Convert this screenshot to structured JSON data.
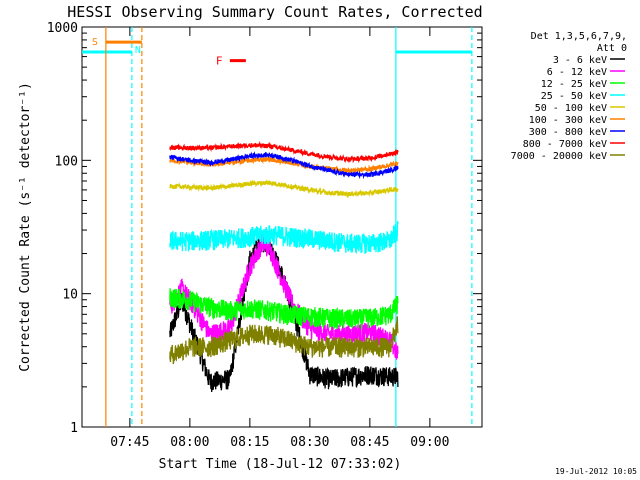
{
  "chart_data": {
    "type": "line",
    "title": "HESSI Observing Summary Count Rates, Corrected",
    "xlabel": "Start Time (18-Jul-12 07:33:02)",
    "ylabel": "Corrected Count Rate (s⁻¹ detector⁻¹)",
    "y_scale": "log",
    "ylim": [
      1,
      1000
    ],
    "xlim": [
      "07:33:02",
      "09:13:02"
    ],
    "x_ticks": [
      "07:45",
      "08:00",
      "08:15",
      "08:30",
      "08:45",
      "09:00"
    ],
    "y_ticks": [
      "1",
      "10",
      "100",
      "1000"
    ],
    "timestamp": "19-Jul-2012 10:05",
    "legend": {
      "header": [
        "Det 1,3,5,6,7,9,",
        "Att 0"
      ],
      "placement": "right"
    },
    "series": [
      {
        "name": "3 - 6 keV",
        "color": "#000000",
        "x": [
          "07:55",
          "07:58",
          "08:00",
          "08:05",
          "08:10",
          "08:15",
          "08:18",
          "08:20",
          "08:23",
          "08:26",
          "08:30",
          "08:35",
          "08:40",
          "08:45",
          "08:50",
          "08:52"
        ],
        "y": [
          5,
          9,
          6,
          2.2,
          2.3,
          18,
          25,
          23,
          14,
          7,
          2.5,
          2.3,
          2.4,
          2.5,
          2.4,
          2.4
        ]
      },
      {
        "name": "6 - 12 keV",
        "color": "#ff00ff",
        "x": [
          "07:55",
          "07:58",
          "08:00",
          "08:05",
          "08:10",
          "08:15",
          "08:18",
          "08:20",
          "08:23",
          "08:26",
          "08:30",
          "08:35",
          "08:40",
          "08:45",
          "08:50",
          "08:52"
        ],
        "y": [
          8,
          11,
          9,
          5,
          5.5,
          16,
          24,
          22,
          13,
          8,
          5.5,
          5,
          5,
          5.2,
          4.5,
          3.5
        ]
      },
      {
        "name": "12 - 25 keV",
        "color": "#00ff00",
        "x": [
          "07:55",
          "08:00",
          "08:05",
          "08:10",
          "08:15",
          "08:20",
          "08:25",
          "08:30",
          "08:35",
          "08:40",
          "08:45",
          "08:50",
          "08:52"
        ],
        "y": [
          9.5,
          9,
          8,
          7.5,
          7.8,
          7.5,
          7,
          6.8,
          6.6,
          6.5,
          6.6,
          7,
          8.5
        ]
      },
      {
        "name": "25 - 50 keV",
        "color": "#00ffff",
        "x": [
          "07:55",
          "08:00",
          "08:05",
          "08:10",
          "08:15",
          "08:20",
          "08:25",
          "08:30",
          "08:35",
          "08:40",
          "08:45",
          "08:50",
          "08:52"
        ],
        "y": [
          25,
          25,
          25.5,
          26,
          27,
          28,
          27,
          26,
          25,
          24,
          24,
          25,
          30
        ]
      },
      {
        "name": "50 - 100 keV",
        "color": "#d8c800",
        "x": [
          "07:55",
          "08:00",
          "08:05",
          "08:10",
          "08:15",
          "08:20",
          "08:25",
          "08:30",
          "08:35",
          "08:40",
          "08:45",
          "08:50",
          "08:52"
        ],
        "y": [
          64,
          63,
          62,
          64,
          67,
          68,
          64,
          60,
          57,
          56,
          57,
          60,
          61
        ]
      },
      {
        "name": "100 - 300 keV",
        "color": "#ff8000",
        "x": [
          "07:55",
          "08:00",
          "08:05",
          "08:10",
          "08:15",
          "08:20",
          "08:25",
          "08:30",
          "08:35",
          "08:40",
          "08:45",
          "08:50",
          "08:52"
        ],
        "y": [
          100,
          97,
          93,
          96,
          100,
          102,
          96,
          90,
          86,
          84,
          86,
          92,
          95
        ]
      },
      {
        "name": "300 - 800 keV",
        "color": "#0000ff",
        "x": [
          "07:55",
          "08:00",
          "08:05",
          "08:10",
          "08:15",
          "08:20",
          "08:25",
          "08:30",
          "08:35",
          "08:40",
          "08:45",
          "08:50",
          "08:52"
        ],
        "y": [
          106,
          100,
          96,
          101,
          108,
          110,
          101,
          91,
          83,
          78,
          78,
          84,
          88
        ]
      },
      {
        "name": "800 - 7000 keV",
        "color": "#ff0000",
        "x": [
          "07:55",
          "08:00",
          "08:05",
          "08:10",
          "08:15",
          "08:20",
          "08:25",
          "08:30",
          "08:35",
          "08:40",
          "08:45",
          "08:50",
          "08:52"
        ],
        "y": [
          125,
          124,
          124,
          127,
          130,
          128,
          120,
          112,
          106,
          102,
          104,
          112,
          115
        ]
      },
      {
        "name": "7000 - 20000 keV",
        "color": "#808000",
        "x": [
          "07:55",
          "08:00",
          "08:05",
          "08:10",
          "08:15",
          "08:20",
          "08:25",
          "08:30",
          "08:35",
          "08:40",
          "08:45",
          "08:50",
          "08:52"
        ],
        "y": [
          3.5,
          4,
          4,
          4.5,
          5,
          5,
          4.5,
          4,
          4,
          4,
          4,
          4,
          6
        ]
      }
    ],
    "annotations": {
      "night_bars": {
        "color": "#00ffff",
        "y": 650,
        "intervals": [
          [
            "07:33:02",
            "07:45:30"
          ],
          [
            "08:51:30",
            "09:10:30"
          ]
        ]
      },
      "night_lines": {
        "color": "#00ffff",
        "solid": [
          "08:51:30"
        ],
        "dashed": [
          "07:45:30",
          "09:10:30"
        ]
      },
      "saa": {
        "label": "S",
        "color": "#ff8000",
        "y": 770,
        "interval": [
          "07:39:00",
          "07:48:00"
        ],
        "solid": "07:39:00",
        "dashed": "07:48:00"
      },
      "night_label": {
        "label": "N",
        "at": "07:45:30",
        "color": "#00ffff"
      },
      "flare": {
        "label": "F",
        "color": "#ff0000",
        "y": 560,
        "interval": [
          "08:10:00",
          "08:14:00"
        ]
      }
    }
  }
}
